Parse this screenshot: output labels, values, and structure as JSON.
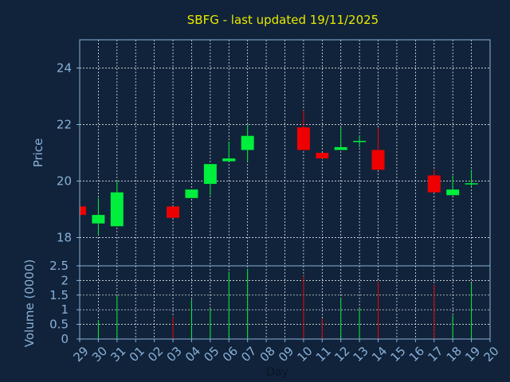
{
  "chart_data": {
    "type": "candlestick",
    "title": "SBFG - last updated 19/11/2025",
    "xlabel": "Day",
    "price_ylabel": "Price",
    "volume_ylabel": "Volume (0000)",
    "x_tick_labels": [
      "29",
      "30",
      "31",
      "01",
      "02",
      "03",
      "04",
      "05",
      "06",
      "07",
      "08",
      "09",
      "10",
      "11",
      "12",
      "13",
      "14",
      "15",
      "16",
      "17",
      "18",
      "19",
      "20"
    ],
    "price_ylim": [
      17,
      25
    ],
    "price_yticks": [
      "18",
      "20",
      "22",
      "24"
    ],
    "price_ytick_values": [
      18,
      20,
      22,
      24
    ],
    "volume_ylim": [
      0,
      2.5
    ],
    "volume_yticks": [
      "0",
      "0.5",
      "1",
      "1.5",
      "2",
      "2.5"
    ],
    "volume_ytick_values": [
      0,
      0.5,
      1,
      1.5,
      2,
      2.5
    ],
    "grid": true,
    "colors": {
      "background": "#10233a",
      "up": "#00ee3c",
      "down": "#ee0000",
      "grid": "#ffffff",
      "axis_text": "#8ab0d8",
      "title": "#e8e800"
    },
    "candles": [
      {
        "day": "29",
        "open": 19.1,
        "high": 19.1,
        "low": 18.8,
        "close": 18.8,
        "volume": 0
      },
      {
        "day": "30",
        "open": 18.5,
        "high": 19.4,
        "low": 18.1,
        "close": 18.8,
        "volume": 0.65
      },
      {
        "day": "31",
        "open": 18.4,
        "high": 20.0,
        "low": 18.4,
        "close": 19.6,
        "volume": 1.5
      },
      {
        "day": "03",
        "open": 19.1,
        "high": 19.1,
        "low": 18.7,
        "close": 18.7,
        "volume": 0.75
      },
      {
        "day": "04",
        "open": 19.4,
        "high": 19.7,
        "low": 19.4,
        "close": 19.7,
        "volume": 1.35
      },
      {
        "day": "05",
        "open": 19.9,
        "high": 20.6,
        "low": 19.5,
        "close": 20.6,
        "volume": 1.05
      },
      {
        "day": "06",
        "open": 20.7,
        "high": 21.4,
        "low": 20.7,
        "close": 20.8,
        "volume": 2.3
      },
      {
        "day": "07",
        "open": 21.1,
        "high": 22.0,
        "low": 20.7,
        "close": 21.6,
        "volume": 2.4
      },
      {
        "day": "10",
        "open": 21.9,
        "high": 22.5,
        "low": 21.1,
        "close": 21.1,
        "volume": 2.15
      },
      {
        "day": "11",
        "open": 21.0,
        "high": 21.0,
        "low": 20.8,
        "close": 20.8,
        "volume": 0.7
      },
      {
        "day": "12",
        "open": 21.1,
        "high": 21.9,
        "low": 21.1,
        "close": 21.2,
        "volume": 1.4
      },
      {
        "day": "13",
        "open": 21.4,
        "high": 21.6,
        "low": 21.2,
        "close": 21.4,
        "volume": 1.05
      },
      {
        "day": "14",
        "open": 21.1,
        "high": 21.9,
        "low": 20.4,
        "close": 20.4,
        "volume": 1.95
      },
      {
        "day": "17",
        "open": 20.2,
        "high": 20.4,
        "low": 19.6,
        "close": 19.6,
        "volume": 1.85
      },
      {
        "day": "18",
        "open": 19.5,
        "high": 20.2,
        "low": 19.5,
        "close": 19.7,
        "volume": 0.8
      },
      {
        "day": "19",
        "open": 19.9,
        "high": 20.4,
        "low": 19.8,
        "close": 19.9,
        "volume": 1.9
      }
    ]
  }
}
